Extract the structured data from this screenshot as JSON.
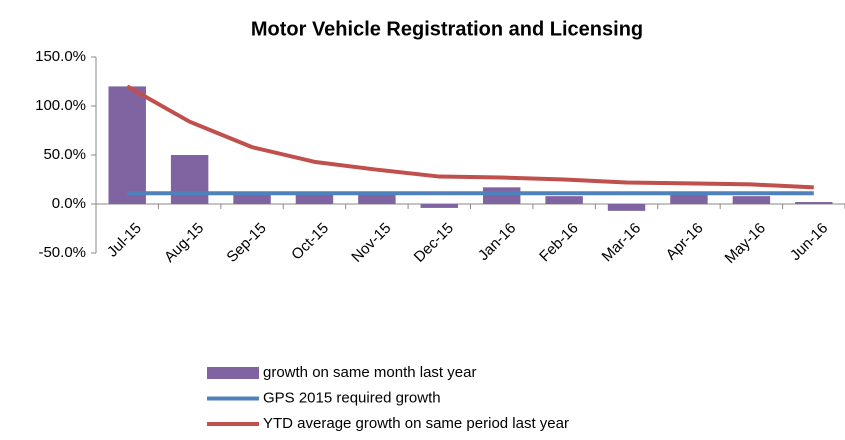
{
  "chart_data": {
    "type": "bar",
    "title": "Motor Vehicle Registration and Licensing",
    "categories": [
      "Jul-15",
      "Aug-15",
      "Sep-15",
      "Oct-15",
      "Nov-15",
      "Dec-15",
      "Jan-16",
      "Feb-16",
      "Mar-16",
      "Apr-16",
      "May-16",
      "Jun-16"
    ],
    "series": [
      {
        "name": "growth on same month last year",
        "type": "bar",
        "color": "#8064a2",
        "values": [
          120,
          50,
          12,
          10,
          10,
          -4,
          17,
          8,
          -7,
          12,
          8,
          2
        ]
      },
      {
        "name": "GPS 2015 required growth",
        "type": "line",
        "color": "#4f81bd",
        "values": [
          11,
          11,
          11,
          11,
          11,
          11,
          11,
          11,
          11,
          11,
          11,
          11
        ]
      },
      {
        "name": "YTD average growth on same period last year",
        "type": "line",
        "color": "#c0504d",
        "values": [
          120,
          84,
          58,
          43,
          35,
          28,
          27,
          25,
          22,
          21,
          20,
          17
        ]
      }
    ],
    "ylim": [
      -50,
      150
    ],
    "yticks": [
      {
        "value": -50,
        "label": "-50.0%"
      },
      {
        "value": 0,
        "label": "0.0%"
      },
      {
        "value": 50,
        "label": "50.0%"
      },
      {
        "value": 100,
        "label": "100.0%"
      },
      {
        "value": 150,
        "label": "150.0%"
      }
    ],
    "grid": false
  }
}
